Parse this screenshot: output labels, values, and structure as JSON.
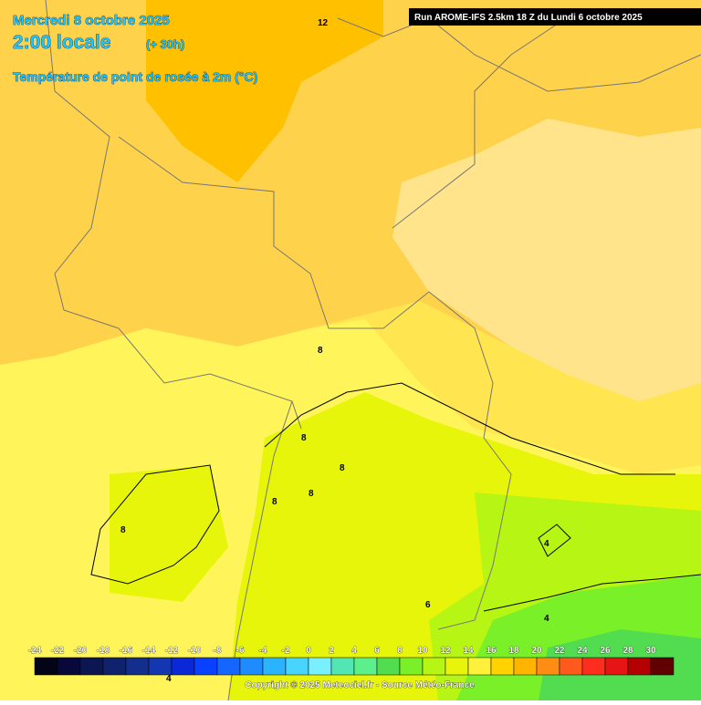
{
  "header": {
    "date": "Mercredi 8 octobre 2025",
    "time": "2:00 locale",
    "lead": "(+ 30h)",
    "parameter": "Température de point de rosée à 2m (°C)",
    "run": "Run AROME-IFS 2.5km 18 Z du Lundi 6 octobre 2025"
  },
  "contour_labels": [
    12,
    8,
    8,
    8,
    8,
    8,
    8,
    4,
    6,
    4,
    4
  ],
  "legend": {
    "levels": [
      -24,
      -22,
      -20,
      -18,
      -16,
      -14,
      -12,
      -10,
      -8,
      -6,
      -4,
      -2,
      0,
      2,
      4,
      6,
      8,
      10,
      12,
      14,
      16,
      18,
      20,
      22,
      24,
      26,
      28,
      30
    ],
    "colors": [
      "#040418",
      "#08083a",
      "#0c1652",
      "#10226c",
      "#132e8c",
      "#1436b0",
      "#0a28d8",
      "#0a40ff",
      "#1466ff",
      "#1e8cff",
      "#2ab4ff",
      "#48d4ff",
      "#7af0ff",
      "#52e6b4",
      "#5cf08c",
      "#52dc50",
      "#7af028",
      "#b6f514",
      "#e8f50a",
      "#fff03c",
      "#ffd200",
      "#ffb400",
      "#ff8c14",
      "#ff5a1e",
      "#ff2d1e",
      "#e61414",
      "#b40000",
      "#600000"
    ]
  },
  "footer": {
    "copyright": "Copyright © 2025 Meteociel.fr - Source Météo-France"
  }
}
